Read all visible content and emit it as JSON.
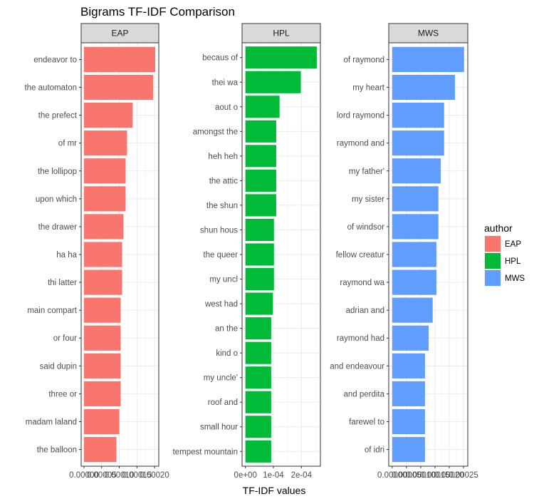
{
  "chart_data": {
    "type": "bar",
    "orientation": "horizontal",
    "title": "Bigrams TF-IDF Comparison",
    "xlabel": "TF-IDF values",
    "ylabel": "",
    "grid": true,
    "legend": {
      "title": "author",
      "placement": "right",
      "entries": [
        {
          "label": "EAP",
          "color": "#F8766D"
        },
        {
          "label": "HPL",
          "color": "#00BA38"
        },
        {
          "label": "MWS",
          "color": "#619CFF"
        }
      ]
    },
    "panels": [
      {
        "name": "EAP",
        "color": "#F8766D",
        "xlim": [
          -8e-06,
          0.000212
        ],
        "ticks": [
          0,
          5e-05,
          0.0001,
          0.00015,
          0.0002
        ],
        "tick_labels": [
          "0.00000",
          "0.00005",
          "0.00010",
          "0.00015",
          "0.00020"
        ],
        "categories": [
          "endeavor to",
          "the automaton",
          "the prefect",
          "of mr",
          "the lollipop",
          "upon which",
          "the drawer",
          "ha ha",
          "thi latter",
          "main compart",
          "or four",
          "said dupin",
          "three or",
          "madam laland",
          "the balloon"
        ],
        "values": [
          0.000202,
          0.000196,
          0.000138,
          0.000122,
          0.000118,
          0.000118,
          0.000112,
          0.000108,
          0.000108,
          0.000104,
          0.000104,
          0.000104,
          0.000104,
          0.0001,
          9.2e-05
        ]
      },
      {
        "name": "HPL",
        "color": "#00BA38",
        "xlim": [
          -1.2e-05,
          0.000268
        ],
        "ticks": [
          0,
          0.0001,
          0.0002
        ],
        "tick_labels": [
          "0e+00",
          "1e-04",
          "2e-04"
        ],
        "categories": [
          "becaus of",
          "thei wa",
          "aout o",
          "amongst the",
          "heh heh",
          "the attic",
          "the shun",
          "shun hous",
          "the queer",
          "my uncl",
          "west had",
          "an the",
          "kind o",
          "my uncle'",
          "roof and",
          "small hour",
          "tempest mountain"
        ],
        "values": [
          0.000255,
          0.000198,
          0.000122,
          0.00011,
          0.00011,
          0.00011,
          0.00011,
          0.000102,
          0.000102,
          0.000102,
          9.8e-05,
          9.2e-05,
          9.2e-05,
          9.2e-05,
          9.2e-05,
          9.2e-05,
          9.2e-05
        ]
      },
      {
        "name": "MWS",
        "color": "#619CFF",
        "xlim": [
          -1.2e-05,
          0.000265
        ],
        "ticks": [
          0,
          5e-05,
          0.0001,
          0.00015,
          0.0002,
          0.00025
        ],
        "tick_labels": [
          "0.00000",
          "0.00005",
          "0.00010",
          "0.00015",
          "0.00020",
          "0.00025"
        ],
        "categories": [
          "of raymond",
          "my heart",
          "lord raymond",
          "raymond and",
          "my father'",
          "my sister",
          "of windsor",
          "fellow creatur",
          "raymond wa",
          "adrian and",
          "raymond had",
          "and endeavour",
          "and perdita",
          "farewel to",
          "of idri"
        ],
        "values": [
          0.000252,
          0.00022,
          0.000182,
          0.000182,
          0.00017,
          0.000162,
          0.000162,
          0.000155,
          0.000155,
          0.000142,
          0.000128,
          0.000115,
          0.000115,
          0.000115,
          0.000115
        ]
      }
    ]
  }
}
